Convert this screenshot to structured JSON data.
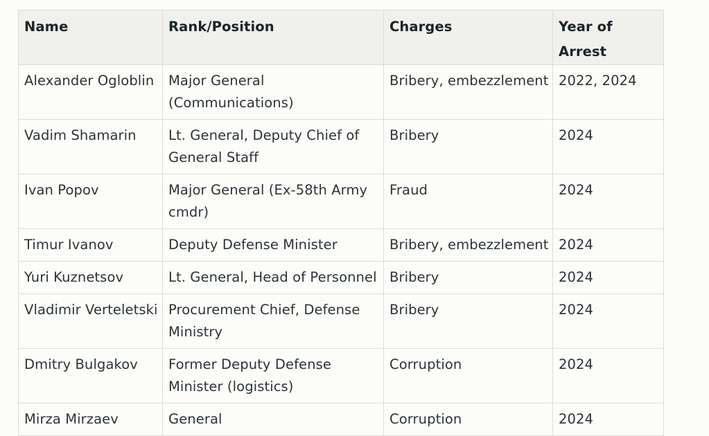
{
  "table": {
    "headers": [
      "Name",
      "Rank/Position",
      "Charges",
      "Year of Arrest"
    ],
    "rows": [
      [
        "Alexander Ogloblin",
        "Major General (Communications)",
        "Bribery, embezzlement",
        "2022, 2024"
      ],
      [
        "Vadim Shamarin",
        "Lt. General, Deputy Chief of General Staff",
        "Bribery",
        "2024"
      ],
      [
        "Ivan Popov",
        "Major General (Ex-58th Army cmdr)",
        "Fraud",
        "2024"
      ],
      [
        "Timur Ivanov",
        "Deputy Defense Minister",
        "Bribery, embezzlement",
        "2024"
      ],
      [
        "Yuri Kuznetsov",
        "Lt. General, Head of Personnel",
        "Bribery",
        "2024"
      ],
      [
        "Vladimir Verteletski",
        "Procurement Chief, Defense Ministry",
        "Bribery",
        "2024"
      ],
      [
        "Dmitry Bulgakov",
        "Former Deputy Defense Minister (logistics)",
        "Corruption",
        "2024"
      ],
      [
        "Mirza Mirzaev",
        "General",
        "Corruption",
        "2024"
      ]
    ]
  }
}
